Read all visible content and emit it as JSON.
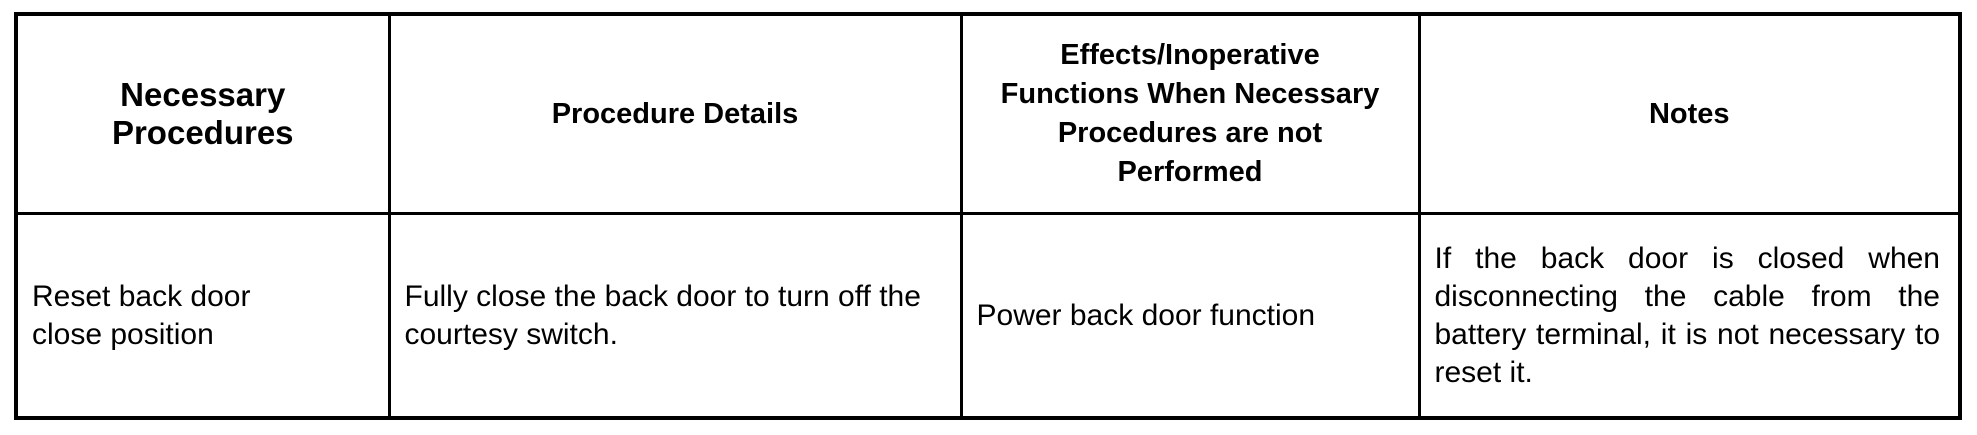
{
  "table": {
    "headers": [
      "Necessary Procedures",
      "Procedure Details",
      "Effects/Inoperative Functions When Necessary Procedures are not Performed",
      "Notes"
    ],
    "rows": [
      [
        "Reset back door close position",
        "Fully close the back door to turn off the courtesy switch.",
        "Power back door function",
        "If the back door is closed when disconnecting the cable from the battery terminal, it is not necessary to reset it."
      ]
    ]
  }
}
